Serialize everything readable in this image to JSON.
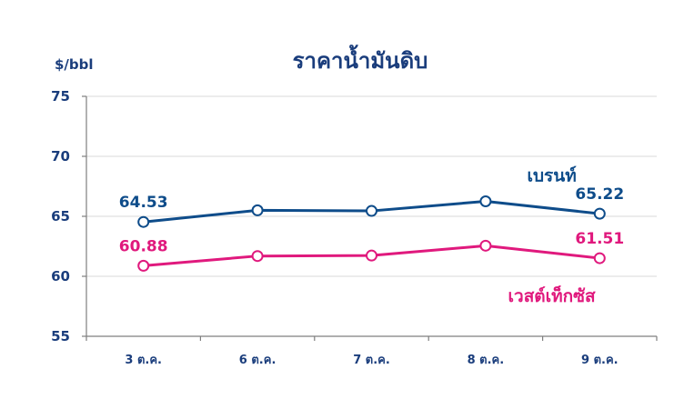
{
  "chart_data": {
    "type": "line",
    "title": "ราคาน้ำมันดิบ",
    "ylabel": "$/bbl",
    "xlabel": "",
    "categories": [
      "3 ต.ค.",
      "6 ต.ค.",
      "7 ต.ค.",
      "8 ต.ค.",
      "9 ต.ค."
    ],
    "ylim": [
      55,
      75
    ],
    "yticks": [
      55,
      60,
      65,
      70,
      75
    ],
    "grid": true,
    "series": [
      {
        "name": "เบรนท์",
        "color": "#0e4c8a",
        "values": [
          64.53,
          65.5,
          65.45,
          66.25,
          65.22
        ],
        "labels": [
          "64.53",
          "",
          "",
          "",
          "65.22"
        ]
      },
      {
        "name": "เวสต์เท็กซัส",
        "color": "#e0197d",
        "values": [
          60.88,
          61.69,
          61.73,
          62.55,
          61.51
        ],
        "labels": [
          "60.88",
          "",
          "",
          "",
          "61.51"
        ]
      }
    ]
  }
}
